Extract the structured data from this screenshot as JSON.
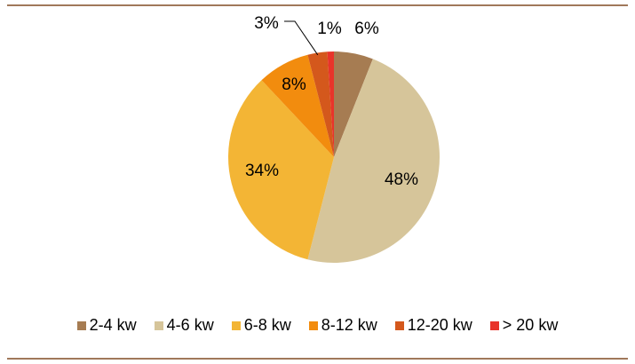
{
  "chart_data": {
    "type": "pie",
    "title": "",
    "legend_position": "bottom",
    "slices": [
      {
        "label": "2-4 kw",
        "value": 6,
        "text": "6%",
        "color": "#a67c52"
      },
      {
        "label": "4-6 kw",
        "value": 48,
        "text": "48%",
        "color": "#d6c59a"
      },
      {
        "label": "6-8 kw",
        "value": 34,
        "text": "34%",
        "color": "#f3b535"
      },
      {
        "label": "8-12 kw",
        "value": 8,
        "text": "8%",
        "color": "#f28c0e"
      },
      {
        "label": "12-20 kw",
        "value": 3,
        "text": "3%",
        "color": "#d4581c"
      },
      {
        "label": "> 20 kw",
        "value": 1,
        "text": "1%",
        "color": "#e8342a"
      }
    ]
  },
  "colors": {
    "rule": "#a0785a"
  }
}
